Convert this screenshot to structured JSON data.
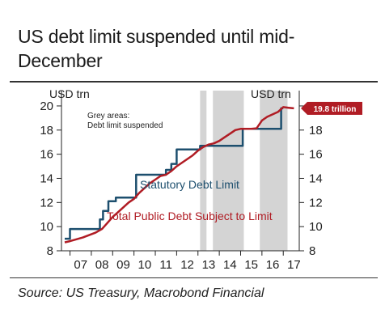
{
  "title": "US debt limit suspended until mid-December",
  "source": "Source: US Treasury, Macrobond Financial",
  "chart_data": {
    "type": "line",
    "title": "US debt limit suspended until mid-December",
    "unit_left": "USD trn",
    "unit_right": "USD trn",
    "ylim": [
      8,
      20.6
    ],
    "yticks": [
      8,
      10,
      12,
      14,
      16,
      18,
      20
    ],
    "xlim": [
      2006.6,
      2017.75
    ],
    "xtick_labels": [
      "07",
      "08",
      "09",
      "10",
      "11",
      "12",
      "13",
      "14",
      "15",
      "16",
      "17"
    ],
    "xtick_values": [
      2007,
      2008,
      2009,
      2010,
      2011,
      2012,
      2013,
      2014,
      2015,
      2016,
      2017
    ],
    "annotation": "Grey areas:\nDebt limit suspended",
    "shaded_periods": [
      [
        2013.1,
        2013.4
      ],
      [
        2013.7,
        2015.15
      ],
      [
        2015.9,
        2017.2
      ]
    ],
    "callout": {
      "text": "19.8 trillion",
      "value": 19.8
    },
    "series": [
      {
        "name": "Statutory Debt Limit",
        "color": "#1d4f6e",
        "x": [
          2006.75,
          2007.0,
          2007.0,
          2008.4,
          2008.4,
          2008.55,
          2008.55,
          2008.8,
          2008.8,
          2009.15,
          2009.15,
          2009.9,
          2009.9,
          2010.1,
          2010.1,
          2011.5,
          2011.5,
          2011.75,
          2011.75,
          2012.0,
          2012.0,
          2013.1,
          2013.1,
          2015.1,
          2015.1,
          2016.9,
          2016.9,
          2017.0
        ],
        "y": [
          9.0,
          9.0,
          9.8,
          9.8,
          10.6,
          10.6,
          11.3,
          11.3,
          12.1,
          12.1,
          12.4,
          12.4,
          12.4,
          12.4,
          14.3,
          14.3,
          14.7,
          14.7,
          15.2,
          15.2,
          16.4,
          16.4,
          16.7,
          16.7,
          18.1,
          18.1,
          19.8,
          19.8
        ]
      },
      {
        "name": "Total Public Debt Subject to Limit",
        "color": "#b01c24",
        "x": [
          2006.75,
          2007.0,
          2007.3,
          2007.6,
          2007.9,
          2008.2,
          2008.5,
          2008.75,
          2009.0,
          2009.25,
          2009.5,
          2009.75,
          2010.0,
          2010.25,
          2010.5,
          2010.75,
          2011.0,
          2011.25,
          2011.5,
          2011.75,
          2012.0,
          2012.25,
          2012.5,
          2012.75,
          2013.0,
          2013.25,
          2013.5,
          2013.75,
          2014.0,
          2014.25,
          2014.5,
          2014.75,
          2015.0,
          2015.25,
          2015.5,
          2015.75,
          2016.0,
          2016.25,
          2016.5,
          2016.75,
          2017.0,
          2017.25,
          2017.5
        ],
        "y": [
          8.7,
          8.8,
          8.95,
          9.1,
          9.3,
          9.5,
          9.8,
          10.3,
          10.8,
          11.2,
          11.6,
          12.0,
          12.3,
          12.8,
          13.2,
          13.6,
          13.9,
          14.2,
          14.3,
          14.6,
          15.0,
          15.3,
          15.6,
          15.9,
          16.3,
          16.6,
          16.8,
          16.9,
          17.1,
          17.4,
          17.7,
          18.0,
          18.1,
          18.1,
          18.1,
          18.15,
          18.8,
          19.1,
          19.3,
          19.5,
          19.9,
          19.85,
          19.8
        ]
      }
    ]
  }
}
